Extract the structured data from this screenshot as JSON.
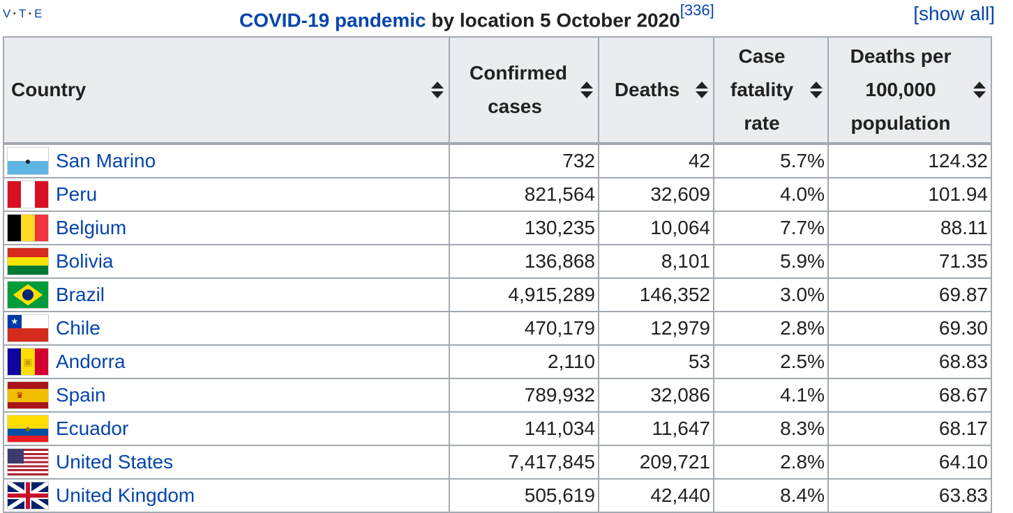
{
  "navbox": {
    "v": "V",
    "t": "T",
    "e": "E"
  },
  "caption": {
    "link": "COVID-19 pandemic",
    "rest": " by location 5 October 2020",
    "ref": "[336]"
  },
  "show_all": "[show all]",
  "columns": [
    "Country",
    "Confirmed cases",
    "Deaths",
    "Case fatality rate",
    "Deaths per 100,000 population"
  ],
  "rows": [
    {
      "country": "San Marino",
      "flag": "san-marino-flag",
      "cases": "732",
      "deaths": "42",
      "cfr": "5.7%",
      "per100k": "124.32"
    },
    {
      "country": "Peru",
      "flag": "peru-flag",
      "cases": "821,564",
      "deaths": "32,609",
      "cfr": "4.0%",
      "per100k": "101.94"
    },
    {
      "country": "Belgium",
      "flag": "belgium-flag",
      "cases": "130,235",
      "deaths": "10,064",
      "cfr": "7.7%",
      "per100k": "88.11"
    },
    {
      "country": "Bolivia",
      "flag": "bolivia-flag",
      "cases": "136,868",
      "deaths": "8,101",
      "cfr": "5.9%",
      "per100k": "71.35"
    },
    {
      "country": "Brazil",
      "flag": "brazil-flag",
      "cases": "4,915,289",
      "deaths": "146,352",
      "cfr": "3.0%",
      "per100k": "69.87"
    },
    {
      "country": "Chile",
      "flag": "chile-flag",
      "cases": "470,179",
      "deaths": "12,979",
      "cfr": "2.8%",
      "per100k": "69.30"
    },
    {
      "country": "Andorra",
      "flag": "andorra-flag",
      "cases": "2,110",
      "deaths": "53",
      "cfr": "2.5%",
      "per100k": "68.83"
    },
    {
      "country": "Spain",
      "flag": "spain-flag",
      "cases": "789,932",
      "deaths": "32,086",
      "cfr": "4.1%",
      "per100k": "68.67"
    },
    {
      "country": "Ecuador",
      "flag": "ecuador-flag",
      "cases": "141,034",
      "deaths": "11,647",
      "cfr": "8.3%",
      "per100k": "68.17"
    },
    {
      "country": "United States",
      "flag": "united-states-flag",
      "cases": "7,417,845",
      "deaths": "209,721",
      "cfr": "2.8%",
      "per100k": "64.10"
    },
    {
      "country": "United Kingdom",
      "flag": "united-kingdom-flag",
      "cases": "505,619",
      "deaths": "42,440",
      "cfr": "8.4%",
      "per100k": "63.83"
    }
  ],
  "colors": {
    "link": "#0645ad",
    "header_bg": "#eaecf0",
    "border": "#a2a9b1"
  }
}
